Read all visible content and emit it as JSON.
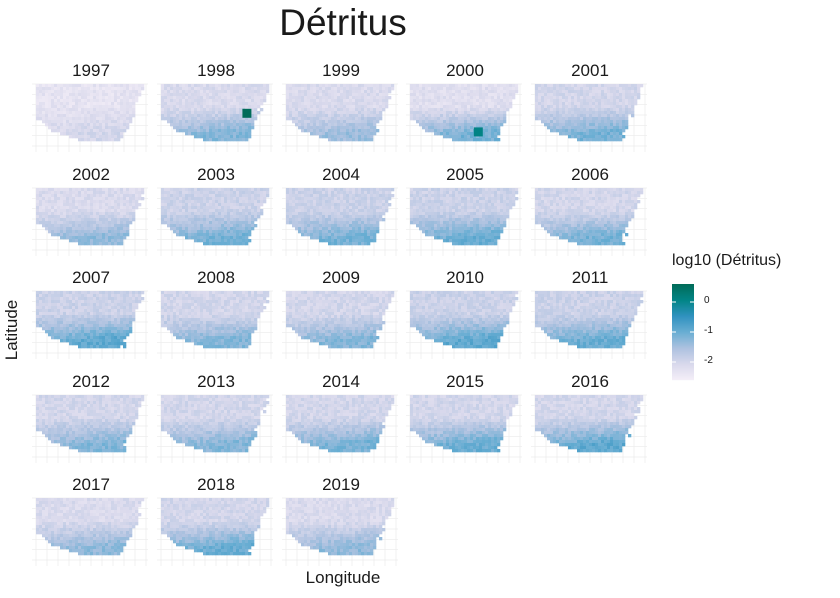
{
  "chart_data": {
    "type": "heatmap",
    "title": "Détritus",
    "xlabel": "Longitude",
    "ylabel": "Latitude",
    "panels": [
      "1997",
      "1998",
      "1999",
      "2000",
      "2001",
      "2002",
      "2003",
      "2004",
      "2005",
      "2006",
      "2007",
      "2008",
      "2009",
      "2010",
      "2011",
      "2012",
      "2013",
      "2014",
      "2015",
      "2016",
      "2017",
      "2018",
      "2019"
    ],
    "legend": {
      "title": "log10 (Détritus)",
      "ticks": [
        {
          "value": 0,
          "label": "0"
        },
        {
          "value": -1,
          "label": "-1"
        },
        {
          "value": -2,
          "label": "-2"
        }
      ],
      "range": [
        -2.6,
        0.6
      ],
      "colors": [
        "#f5eff8",
        "#d9d9ec",
        "#aec2e0",
        "#6aaed3",
        "#3192c0",
        "#028587",
        "#016c59"
      ]
    },
    "panel_stats": [
      {
        "year": "1997",
        "base": -2.3,
        "edge": -2.0
      },
      {
        "year": "1998",
        "base": -2.1,
        "edge": -1.2
      },
      {
        "year": "1999",
        "base": -2.1,
        "edge": -1.4
      },
      {
        "year": "2000",
        "base": -2.2,
        "edge": -1.1
      },
      {
        "year": "2001",
        "base": -2.0,
        "edge": -1.1
      },
      {
        "year": "2002",
        "base": -2.1,
        "edge": -1.3
      },
      {
        "year": "2003",
        "base": -1.9,
        "edge": -1.1
      },
      {
        "year": "2004",
        "base": -1.9,
        "edge": -1.1
      },
      {
        "year": "2005",
        "base": -1.9,
        "edge": -1.0
      },
      {
        "year": "2006",
        "base": -2.0,
        "edge": -1.1
      },
      {
        "year": "2007",
        "base": -1.9,
        "edge": -0.9
      },
      {
        "year": "2008",
        "base": -2.0,
        "edge": -1.2
      },
      {
        "year": "2009",
        "base": -2.0,
        "edge": -1.2
      },
      {
        "year": "2010",
        "base": -1.9,
        "edge": -0.9
      },
      {
        "year": "2011",
        "base": -1.9,
        "edge": -1.0
      },
      {
        "year": "2012",
        "base": -2.0,
        "edge": -1.2
      },
      {
        "year": "2013",
        "base": -2.0,
        "edge": -1.2
      },
      {
        "year": "2014",
        "base": -2.0,
        "edge": -1.1
      },
      {
        "year": "2015",
        "base": -2.0,
        "edge": -1.0
      },
      {
        "year": "2016",
        "base": -2.0,
        "edge": -0.9
      },
      {
        "year": "2017",
        "base": -2.1,
        "edge": -1.3
      },
      {
        "year": "2018",
        "base": -2.0,
        "edge": -1.0
      },
      {
        "year": "2019",
        "base": -2.1,
        "edge": -1.3
      }
    ],
    "hotspots": [
      {
        "year": "1998",
        "value": 0.6
      },
      {
        "year": "2000",
        "value": 0.1
      }
    ],
    "grid": true
  }
}
